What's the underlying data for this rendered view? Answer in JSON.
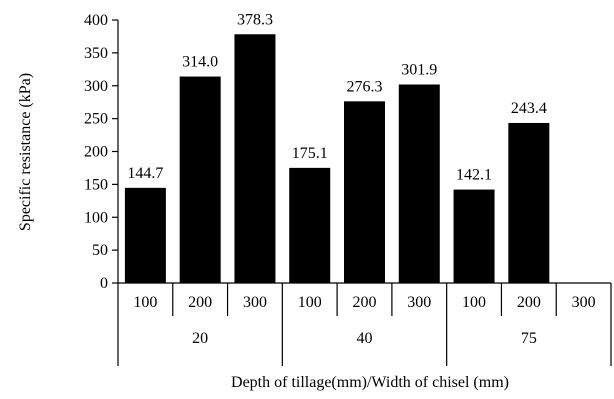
{
  "chart_data": {
    "type": "bar",
    "ylabel": "Specific resistance (kPa)",
    "xlabel": "Depth of tillage(mm)/Width of chisel (mm)",
    "ylim": [
      0,
      400
    ],
    "yticks": [
      0,
      50,
      100,
      150,
      200,
      250,
      300,
      350,
      400
    ],
    "grid": false,
    "bar_color": "#000000",
    "categories": [
      "100",
      "200",
      "300",
      "100",
      "200",
      "300",
      "100",
      "200",
      "300"
    ],
    "groups": [
      {
        "label": "20",
        "span": [
          0,
          2
        ]
      },
      {
        "label": "40",
        "span": [
          3,
          5
        ]
      },
      {
        "label": "75",
        "span": [
          6,
          8
        ]
      }
    ],
    "values": [
      144.7,
      314.0,
      378.3,
      175.1,
      276.3,
      301.9,
      142.1,
      243.4,
      null
    ],
    "data_labels": [
      "144.7",
      "314.0",
      "378.3",
      "175.1",
      "276.3",
      "301.9",
      "142.1",
      "243.4",
      ""
    ]
  }
}
